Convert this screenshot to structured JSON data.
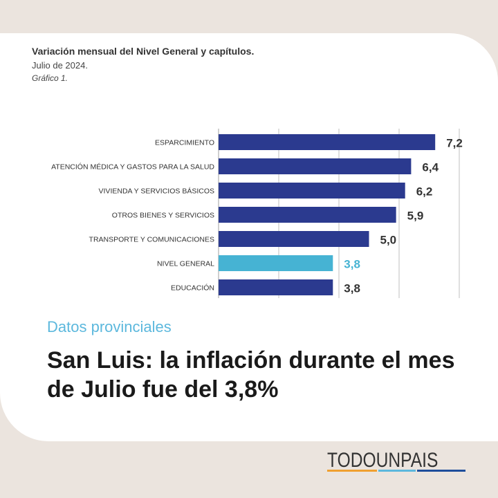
{
  "chart_data": {
    "type": "bar",
    "orientation": "horizontal",
    "title": "Variación mensual del Nivel General y capítulos.",
    "subtitle": "Julio de 2024.",
    "caption": "Gráfico 1.",
    "categories": [
      "ESPARCIMIENTO",
      "ATENCIÓN MÉDICA Y GASTOS PARA LA SALUD",
      "VIVIENDA Y SERVICIOS BÁSICOS",
      "OTROS BIENES Y SERVICIOS",
      "TRANSPORTE Y COMUNICACIONES",
      "NIVEL GENERAL",
      "EDUCACIÓN"
    ],
    "values": [
      7.2,
      6.4,
      6.2,
      5.9,
      5.0,
      3.8,
      3.8
    ],
    "value_labels": [
      "7,2",
      "6,4",
      "6,2",
      "5,9",
      "5,0",
      "3,8",
      "3,8"
    ],
    "highlight_index": 5,
    "xlim": [
      0,
      8
    ],
    "grid": true,
    "colors": {
      "bar": "#2b3a8f",
      "highlight": "#46b3d3",
      "label": "#333333",
      "highlight_label": "#46b3d3"
    }
  },
  "article": {
    "tag": "Datos provinciales",
    "headline": "San Luis: la inflación durante el mes de Julio fue del 3,8%"
  },
  "brand": {
    "name": "TODOUNPAIS"
  }
}
